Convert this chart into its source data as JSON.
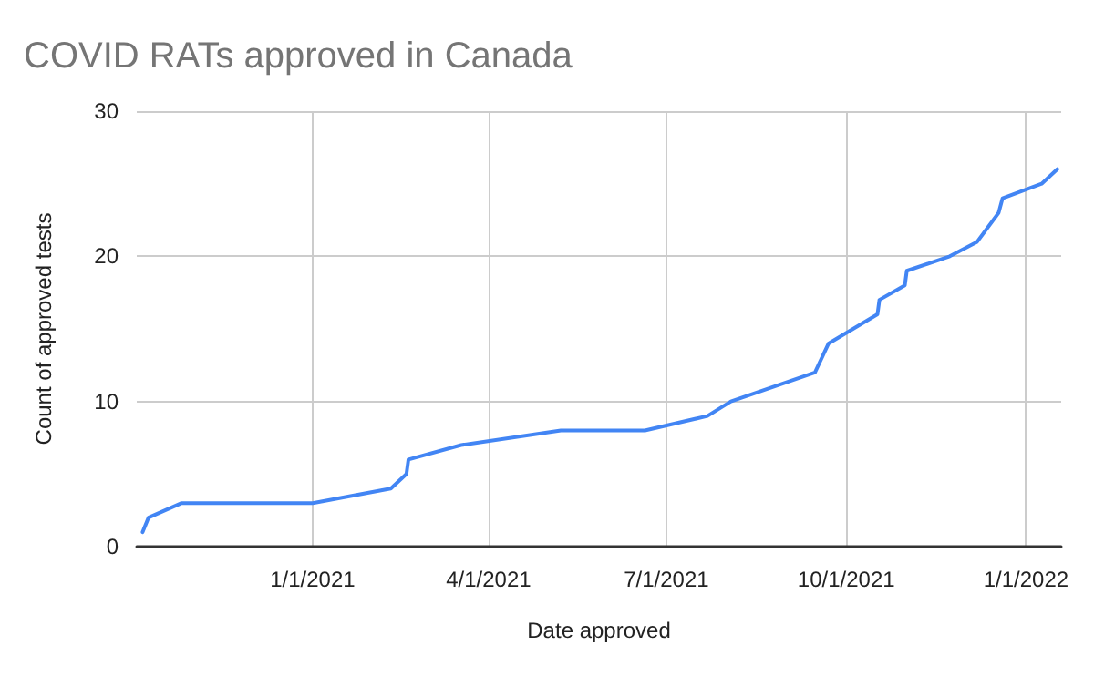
{
  "chart_data": {
    "type": "line",
    "title": "COVID RATs approved in Canada",
    "xlabel": "Date approved",
    "ylabel": "Count of approved tests",
    "x": [
      "2020-10-06",
      "2020-10-09",
      "2020-10-26",
      "2021-01-01",
      "2021-02-10",
      "2021-02-18",
      "2021-02-19",
      "2021-03-18",
      "2021-05-08",
      "2021-06-20",
      "2021-07-22",
      "2021-08-03",
      "2021-09-15",
      "2021-09-22",
      "2021-10-17",
      "2021-10-18",
      "2021-10-31",
      "2021-11-01",
      "2021-11-23",
      "2021-12-07",
      "2021-12-18",
      "2021-12-20",
      "2022-01-09",
      "2022-01-17"
    ],
    "series": [
      {
        "color": "#4285f4",
        "values": [
          1,
          2,
          3,
          3,
          4,
          5,
          6,
          7,
          8,
          8,
          9,
          10,
          12,
          14,
          16,
          17,
          18,
          19,
          20,
          21,
          23,
          24,
          25,
          26
        ]
      }
    ],
    "xlim": [
      "2020-10-03",
      "2022-01-19"
    ],
    "xticks": [
      {
        "value": "2021-01-01",
        "label": "1/1/2021"
      },
      {
        "value": "2021-04-01",
        "label": "4/1/2021"
      },
      {
        "value": "2021-07-01",
        "label": "7/1/2021"
      },
      {
        "value": "2021-10-01",
        "label": "10/1/2021"
      },
      {
        "value": "2022-01-01",
        "label": "1/1/2022"
      }
    ],
    "ylim": [
      0,
      30
    ],
    "yticks": [
      0,
      10,
      20,
      30
    ],
    "grid": true,
    "marker": "none",
    "line_style": "solid"
  }
}
